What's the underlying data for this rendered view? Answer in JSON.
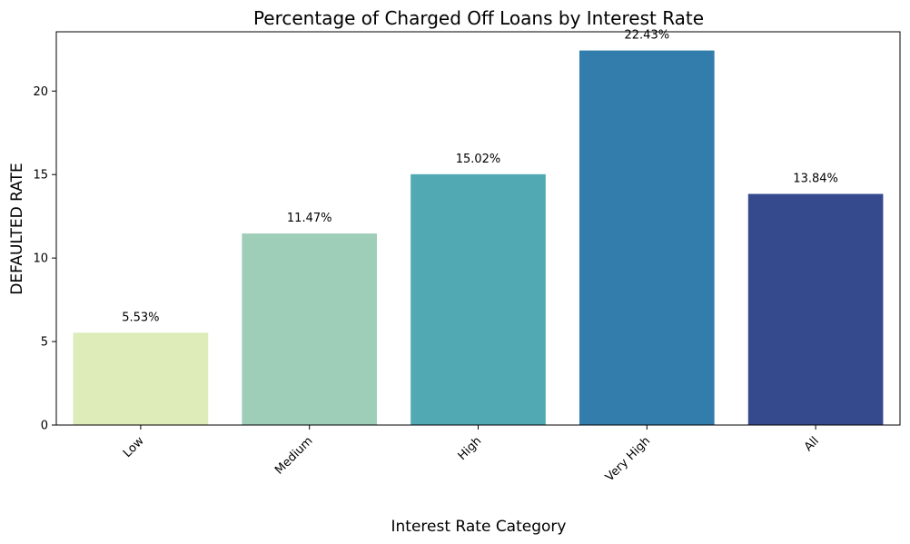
{
  "chart_data": {
    "type": "bar",
    "title": "Percentage of Charged Off Loans by Interest Rate",
    "xlabel": "Interest Rate Category",
    "ylabel": "DEFAULTED RATE",
    "categories": [
      "Low",
      "Medium",
      "High",
      "Very High",
      "All"
    ],
    "values": [
      5.53,
      11.47,
      15.02,
      22.43,
      13.84
    ],
    "value_labels": [
      "5.53%",
      "11.47%",
      "15.02%",
      "22.43%",
      "13.84%"
    ],
    "colors": [
      "#ddecb9",
      "#9ecdb8",
      "#51a9b4",
      "#327dab",
      "#344a8d"
    ],
    "ylim": [
      0,
      23.55
    ],
    "yticks": [
      0,
      5,
      10,
      15,
      20
    ],
    "ytick_labels": [
      "0",
      "5",
      "10",
      "15",
      "20"
    ],
    "grid": false,
    "legend": "none",
    "xtick_rotation": 45
  }
}
